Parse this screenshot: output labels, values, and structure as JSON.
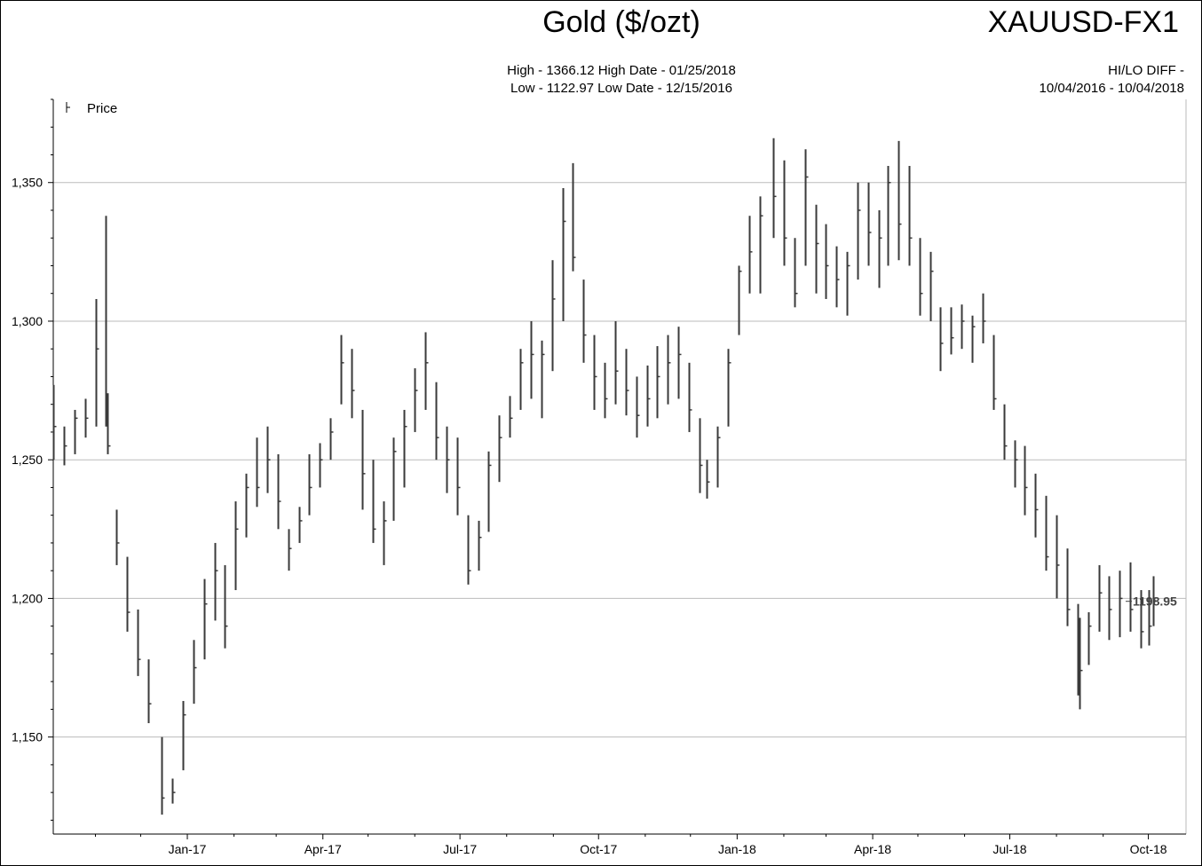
{
  "header": {
    "title": "Gold ($/ozt)",
    "symbol": "XAUUSD-FX1",
    "high_line": "High - 1366.12 High Date - 01/25/2018",
    "low_line": "Low - 1122.97 Low Date - 12/15/2016",
    "hilo_label": "HI/LO DIFF -",
    "date_range": "10/04/2016 - 10/04/2018"
  },
  "colors": {
    "bars": "#3a3a3a",
    "grid": "#bbbbbb",
    "axis": "#000000",
    "last_label": "#444444"
  },
  "chart_data": {
    "type": "line",
    "style": "ohlc-bars",
    "legend": {
      "entries": [
        "Price"
      ],
      "position": "top-left"
    },
    "y_ticks": [
      1150,
      1200,
      1250,
      1300,
      1350
    ],
    "y_tick_labels": [
      "1,150",
      "1,200",
      "1,250",
      "1,300",
      "1,350"
    ],
    "ylim": [
      1115,
      1380
    ],
    "x_tick_labels": [
      "Jan-17",
      "Apr-17",
      "Jul-17",
      "Oct-17",
      "Jan-18",
      "Apr-18",
      "Jul-18",
      "Oct-18"
    ],
    "xlim": [
      "2016-10-04",
      "2018-10-26"
    ],
    "grid": true,
    "last_value": 1198.95,
    "last_value_label": "1198.95",
    "series": [
      {
        "name": "Price",
        "x": [
          "2016-10-04",
          "2016-10-11",
          "2016-10-18",
          "2016-10-25",
          "2016-11-01",
          "2016-11-08",
          "2016-11-09",
          "2016-11-15",
          "2016-11-22",
          "2016-11-29",
          "2016-12-06",
          "2016-12-15",
          "2016-12-22",
          "2016-12-29",
          "2017-01-05",
          "2017-01-12",
          "2017-01-19",
          "2017-01-26",
          "2017-02-02",
          "2017-02-09",
          "2017-02-16",
          "2017-02-23",
          "2017-03-02",
          "2017-03-09",
          "2017-03-16",
          "2017-03-23",
          "2017-03-30",
          "2017-04-06",
          "2017-04-13",
          "2017-04-20",
          "2017-04-27",
          "2017-05-04",
          "2017-05-11",
          "2017-05-18",
          "2017-05-25",
          "2017-06-01",
          "2017-06-08",
          "2017-06-15",
          "2017-06-22",
          "2017-06-29",
          "2017-07-06",
          "2017-07-13",
          "2017-07-20",
          "2017-07-27",
          "2017-08-03",
          "2017-08-10",
          "2017-08-17",
          "2017-08-24",
          "2017-08-31",
          "2017-09-07",
          "2017-09-14",
          "2017-09-21",
          "2017-09-28",
          "2017-10-05",
          "2017-10-12",
          "2017-10-19",
          "2017-10-26",
          "2017-11-02",
          "2017-11-09",
          "2017-11-16",
          "2017-11-23",
          "2017-11-30",
          "2017-12-07",
          "2017-12-12",
          "2017-12-19",
          "2017-12-26",
          "2018-01-02",
          "2018-01-09",
          "2018-01-16",
          "2018-01-25",
          "2018-02-01",
          "2018-02-08",
          "2018-02-15",
          "2018-02-22",
          "2018-03-01",
          "2018-03-08",
          "2018-03-15",
          "2018-03-22",
          "2018-03-29",
          "2018-04-05",
          "2018-04-11",
          "2018-04-18",
          "2018-04-25",
          "2018-05-02",
          "2018-05-09",
          "2018-05-16",
          "2018-05-23",
          "2018-05-30",
          "2018-06-06",
          "2018-06-13",
          "2018-06-20",
          "2018-06-27",
          "2018-07-04",
          "2018-07-11",
          "2018-07-18",
          "2018-07-25",
          "2018-08-01",
          "2018-08-08",
          "2018-08-15",
          "2018-08-16",
          "2018-08-22",
          "2018-08-29",
          "2018-09-05",
          "2018-09-12",
          "2018-09-19",
          "2018-09-26",
          "2018-10-01",
          "2018-10-04"
        ],
        "high": [
          1277,
          1262,
          1268,
          1272,
          1308,
          1338,
          1274,
          1232,
          1215,
          1196,
          1178,
          1150,
          1135,
          1163,
          1185,
          1207,
          1220,
          1212,
          1235,
          1245,
          1258,
          1262,
          1252,
          1225,
          1233,
          1252,
          1256,
          1265,
          1295,
          1290,
          1268,
          1250,
          1235,
          1258,
          1268,
          1283,
          1296,
          1278,
          1262,
          1258,
          1230,
          1228,
          1253,
          1266,
          1273,
          1290,
          1300,
          1293,
          1322,
          1348,
          1357,
          1315,
          1295,
          1285,
          1300,
          1290,
          1280,
          1284,
          1291,
          1295,
          1298,
          1285,
          1265,
          1250,
          1262,
          1290,
          1320,
          1338,
          1345,
          1366,
          1358,
          1330,
          1362,
          1342,
          1335,
          1327,
          1325,
          1350,
          1350,
          1340,
          1356,
          1365,
          1356,
          1330,
          1325,
          1305,
          1305,
          1306,
          1302,
          1310,
          1295,
          1270,
          1257,
          1255,
          1245,
          1237,
          1230,
          1218,
          1198,
          1193,
          1195,
          1212,
          1208,
          1210,
          1213,
          1203,
          1203,
          1208
        ],
        "low": [
          1250,
          1248,
          1252,
          1258,
          1262,
          1262,
          1252,
          1212,
          1188,
          1172,
          1155,
          1122,
          1126,
          1138,
          1162,
          1178,
          1192,
          1182,
          1203,
          1222,
          1233,
          1238,
          1225,
          1210,
          1220,
          1230,
          1240,
          1250,
          1270,
          1265,
          1232,
          1220,
          1212,
          1228,
          1240,
          1260,
          1268,
          1250,
          1238,
          1230,
          1205,
          1210,
          1224,
          1242,
          1258,
          1268,
          1272,
          1265,
          1282,
          1300,
          1318,
          1285,
          1268,
          1265,
          1270,
          1266,
          1258,
          1262,
          1265,
          1270,
          1272,
          1260,
          1238,
          1236,
          1240,
          1262,
          1295,
          1310,
          1310,
          1330,
          1320,
          1305,
          1320,
          1310,
          1308,
          1305,
          1302,
          1315,
          1320,
          1312,
          1320,
          1322,
          1320,
          1302,
          1300,
          1282,
          1288,
          1290,
          1285,
          1292,
          1268,
          1250,
          1240,
          1230,
          1222,
          1210,
          1200,
          1190,
          1165,
          1160,
          1176,
          1188,
          1185,
          1186,
          1188,
          1182,
          1183,
          1190
        ],
        "close": [
          1262,
          1255,
          1265,
          1265,
          1290,
          1272,
          1255,
          1220,
          1195,
          1178,
          1162,
          1128,
          1130,
          1158,
          1175,
          1198,
          1210,
          1190,
          1225,
          1240,
          1240,
          1250,
          1235,
          1218,
          1228,
          1240,
          1250,
          1260,
          1285,
          1275,
          1245,
          1225,
          1228,
          1253,
          1262,
          1275,
          1285,
          1258,
          1250,
          1240,
          1210,
          1222,
          1248,
          1258,
          1265,
          1285,
          1288,
          1288,
          1308,
          1336,
          1323,
          1295,
          1280,
          1272,
          1282,
          1275,
          1266,
          1272,
          1280,
          1285,
          1288,
          1268,
          1248,
          1242,
          1258,
          1285,
          1318,
          1325,
          1338,
          1345,
          1330,
          1310,
          1352,
          1328,
          1320,
          1315,
          1320,
          1340,
          1332,
          1330,
          1350,
          1335,
          1330,
          1310,
          1318,
          1292,
          1294,
          1300,
          1298,
          1300,
          1272,
          1255,
          1250,
          1240,
          1232,
          1215,
          1212,
          1196,
          1180,
          1174,
          1190,
          1202,
          1196,
          1200,
          1196,
          1188,
          1190,
          1198.95
        ]
      }
    ]
  }
}
